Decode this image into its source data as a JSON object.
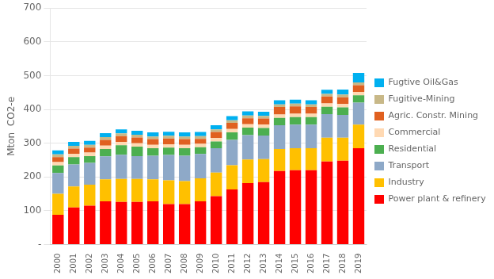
{
  "chart_data": {
    "type": "bar",
    "stacked": true,
    "categories": [
      "2000",
      "2001",
      "2002",
      "2003",
      "2004",
      "2005",
      "2006",
      "2007",
      "2008",
      "2009",
      "2010",
      "2011",
      "2012",
      "2013",
      "2014",
      "2015",
      "2016",
      "2017",
      "2018",
      "2019"
    ],
    "series": [
      {
        "name": "Power plant & refinery",
        "color": "#FF0000",
        "values": [
          88,
          110,
          115,
          128,
          126,
          126,
          128,
          120,
          120,
          128,
          143,
          163,
          182,
          185,
          218,
          220,
          220,
          246,
          248,
          285
        ]
      },
      {
        "name": "Industry",
        "color": "#FFC000",
        "values": [
          62,
          62,
          62,
          65,
          68,
          68,
          65,
          70,
          68,
          68,
          70,
          72,
          70,
          68,
          65,
          65,
          65,
          70,
          68,
          70
        ]
      },
      {
        "name": "Transport",
        "color": "#8EA9C8",
        "values": [
          62,
          65,
          65,
          68,
          72,
          68,
          70,
          75,
          75,
          72,
          72,
          75,
          72,
          70,
          70,
          70,
          70,
          70,
          68,
          65
        ]
      },
      {
        "name": "Residential",
        "color": "#4CAF50",
        "values": [
          22,
          22,
          20,
          22,
          28,
          28,
          22,
          22,
          22,
          20,
          20,
          22,
          22,
          22,
          22,
          22,
          22,
          22,
          22,
          22
        ]
      },
      {
        "name": "Commercial",
        "color": "#FFD9B3",
        "values": [
          10,
          10,
          10,
          10,
          10,
          10,
          10,
          10,
          10,
          10,
          10,
          10,
          10,
          10,
          10,
          10,
          10,
          10,
          10,
          10
        ]
      },
      {
        "name": "Agric. Constr. Mining",
        "color": "#E06020",
        "values": [
          15,
          15,
          15,
          17,
          17,
          17,
          17,
          17,
          17,
          15,
          18,
          18,
          18,
          18,
          22,
          22,
          20,
          20,
          20,
          20
        ]
      },
      {
        "name": "Fugitive-Mining",
        "color": "#C8B888",
        "values": [
          8,
          8,
          8,
          8,
          8,
          8,
          8,
          8,
          8,
          8,
          8,
          8,
          8,
          8,
          8,
          8,
          8,
          8,
          8,
          8
        ]
      },
      {
        "name": "Fugtive Oil&Gas",
        "color": "#00B0F0",
        "values": [
          12,
          12,
          12,
          12,
          12,
          12,
          12,
          12,
          12,
          12,
          12,
          12,
          12,
          12,
          12,
          12,
          12,
          12,
          15,
          28
        ]
      }
    ],
    "ylabel": "Mton  CO2-e",
    "ylim": [
      0,
      700
    ],
    "yticks": [
      {
        "value": 0,
        "label": "-"
      },
      100,
      200,
      300,
      400,
      500,
      600,
      700
    ],
    "grid": true,
    "legend": "right"
  }
}
